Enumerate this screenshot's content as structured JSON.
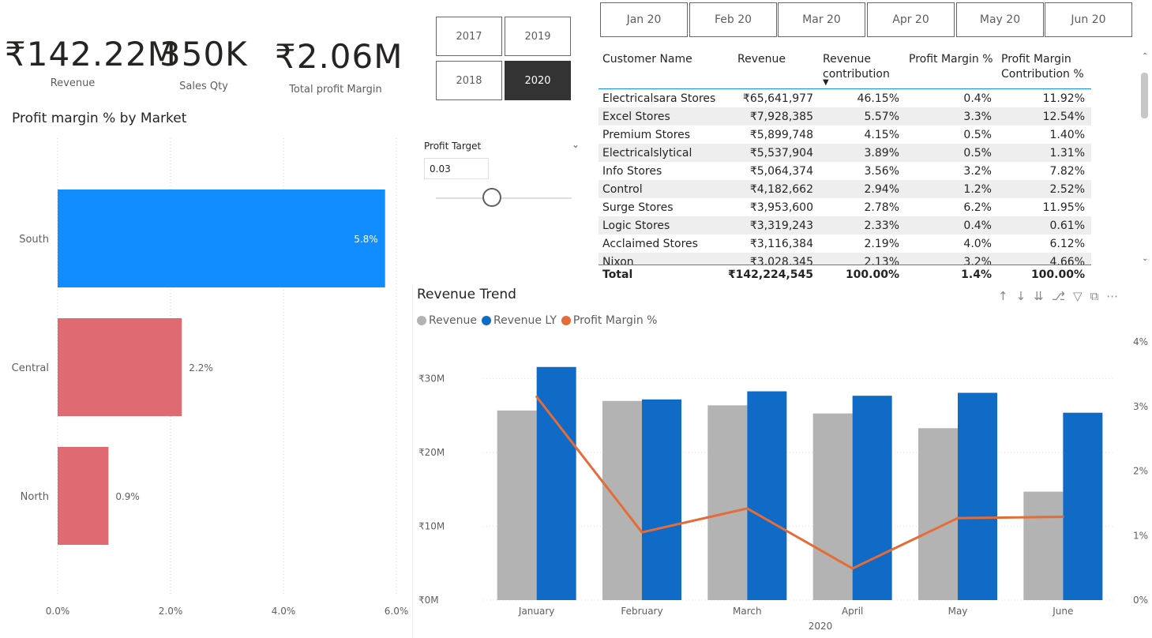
{
  "kpis": [
    {
      "value": "₹142.22M",
      "label": "Revenue"
    },
    {
      "value": "350K",
      "label": "Sales Qty"
    },
    {
      "value": "₹2.06M",
      "label": "Total profit Margin"
    }
  ],
  "year_slicer": {
    "options": [
      "2017",
      "2019",
      "2018",
      "2020"
    ],
    "selected": "2020"
  },
  "month_slicer": {
    "options": [
      "Jan 20",
      "Feb 20",
      "Mar 20",
      "Apr 20",
      "May 20",
      "Jun 20"
    ]
  },
  "profit_target": {
    "label": "Profit Target",
    "value": "0.03",
    "slider_fraction": 0.41
  },
  "table": {
    "headers": [
      "Customer Name",
      "Revenue",
      "Revenue contribution",
      "Profit Margin %",
      "Profit Margin Contribution %"
    ],
    "rows": [
      [
        "Electricalsara Stores",
        "₹65,641,977",
        "46.15%",
        "0.4%",
        "11.92%"
      ],
      [
        "Excel Stores",
        "₹7,928,385",
        "5.57%",
        "3.3%",
        "12.54%"
      ],
      [
        "Premium Stores",
        "₹5,899,748",
        "4.15%",
        "0.5%",
        "1.40%"
      ],
      [
        "Electricalslytical",
        "₹5,537,904",
        "3.89%",
        "0.5%",
        "1.31%"
      ],
      [
        "Info Stores",
        "₹5,064,374",
        "3.56%",
        "3.2%",
        "7.82%"
      ],
      [
        "Control",
        "₹4,182,662",
        "2.94%",
        "1.2%",
        "2.52%"
      ],
      [
        "Surge Stores",
        "₹3,953,600",
        "2.78%",
        "6.2%",
        "11.95%"
      ],
      [
        "Logic Stores",
        "₹3,319,243",
        "2.33%",
        "0.4%",
        "0.61%"
      ],
      [
        "Acclaimed Stores",
        "₹3,116,384",
        "2.19%",
        "4.0%",
        "6.12%"
      ],
      [
        "Nixon",
        "₹3,028,345",
        "2.13%",
        "3.2%",
        "4.66%"
      ]
    ],
    "total": [
      "Total",
      "₹142,224,545",
      "100.00%",
      "1.4%",
      "100.00%"
    ]
  },
  "chart_data": [
    {
      "type": "bar",
      "orientation": "horizontal",
      "title": "Profit margin % by Market",
      "categories": [
        "South",
        "Central",
        "North"
      ],
      "values": [
        5.8,
        2.2,
        0.9
      ],
      "value_labels": [
        "5.8%",
        "2.2%",
        "0.9%"
      ],
      "xlim": [
        0,
        6
      ],
      "xticks": [
        "0.0%",
        "2.0%",
        "4.0%",
        "6.0%"
      ],
      "colors": [
        "#118DFF",
        "#E06A72",
        "#E06A72"
      ],
      "grid": "vertical dotted"
    },
    {
      "type": "bar",
      "title": "Revenue Trend",
      "categories": [
        "January",
        "February",
        "March",
        "April",
        "May",
        "June"
      ],
      "xlabel": "2020",
      "series": [
        {
          "name": "Revenue",
          "type": "bar",
          "color": "#B3B3B3",
          "values": [
            25.7,
            27.0,
            26.4,
            25.3,
            23.3,
            14.7
          ]
        },
        {
          "name": "Revenue LY",
          "type": "bar",
          "color": "#0F6BC6",
          "values": [
            31.6,
            27.2,
            28.3,
            27.7,
            28.1,
            25.4
          ]
        },
        {
          "name": "Profit Margin %",
          "type": "line",
          "axis": "secondary",
          "color": "#E66C37",
          "values": [
            3.15,
            1.05,
            1.42,
            0.49,
            1.27,
            1.29
          ]
        }
      ],
      "ylim": [
        0,
        35
      ],
      "yticks": [
        "₹0M",
        "₹10M",
        "₹20M",
        "₹30M"
      ],
      "y2lim": [
        0,
        4
      ],
      "y2ticks": [
        "0%",
        "1%",
        "2%",
        "3%",
        "4%"
      ],
      "legend": "top-left"
    }
  ]
}
